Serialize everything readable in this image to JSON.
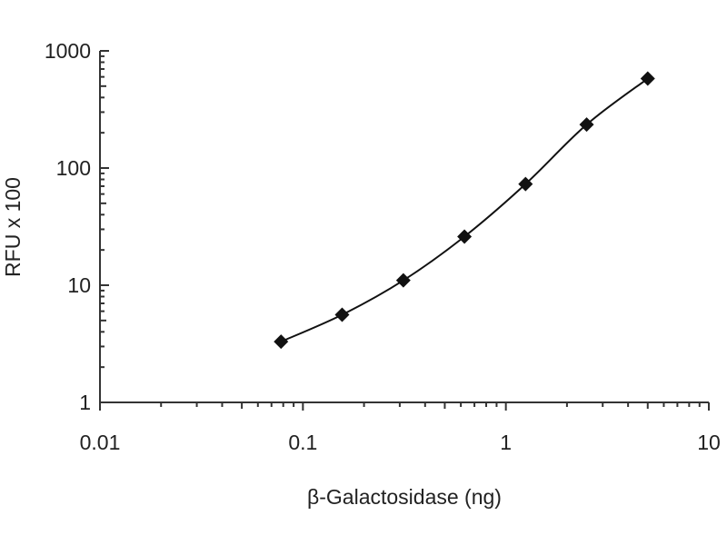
{
  "chart_data": {
    "type": "line",
    "title": "",
    "xlabel": "β-Galactosidase (ng)",
    "ylabel": "RFU x 100",
    "xscale": "log",
    "yscale": "log",
    "xlim": [
      0.01,
      10
    ],
    "ylim": [
      1,
      1000
    ],
    "x_ticks": [
      "0.01",
      "0.1",
      "1",
      "10"
    ],
    "y_ticks": [
      "1",
      "10",
      "100",
      "1000"
    ],
    "grid": false,
    "legend": "none",
    "series": [
      {
        "marker": "diamond",
        "color": "#111111",
        "x": [
          0.078,
          0.156,
          0.3125,
          0.625,
          1.25,
          2.5,
          5
        ],
        "y": [
          3.3,
          5.6,
          11,
          26,
          73,
          235,
          580
        ]
      }
    ]
  }
}
